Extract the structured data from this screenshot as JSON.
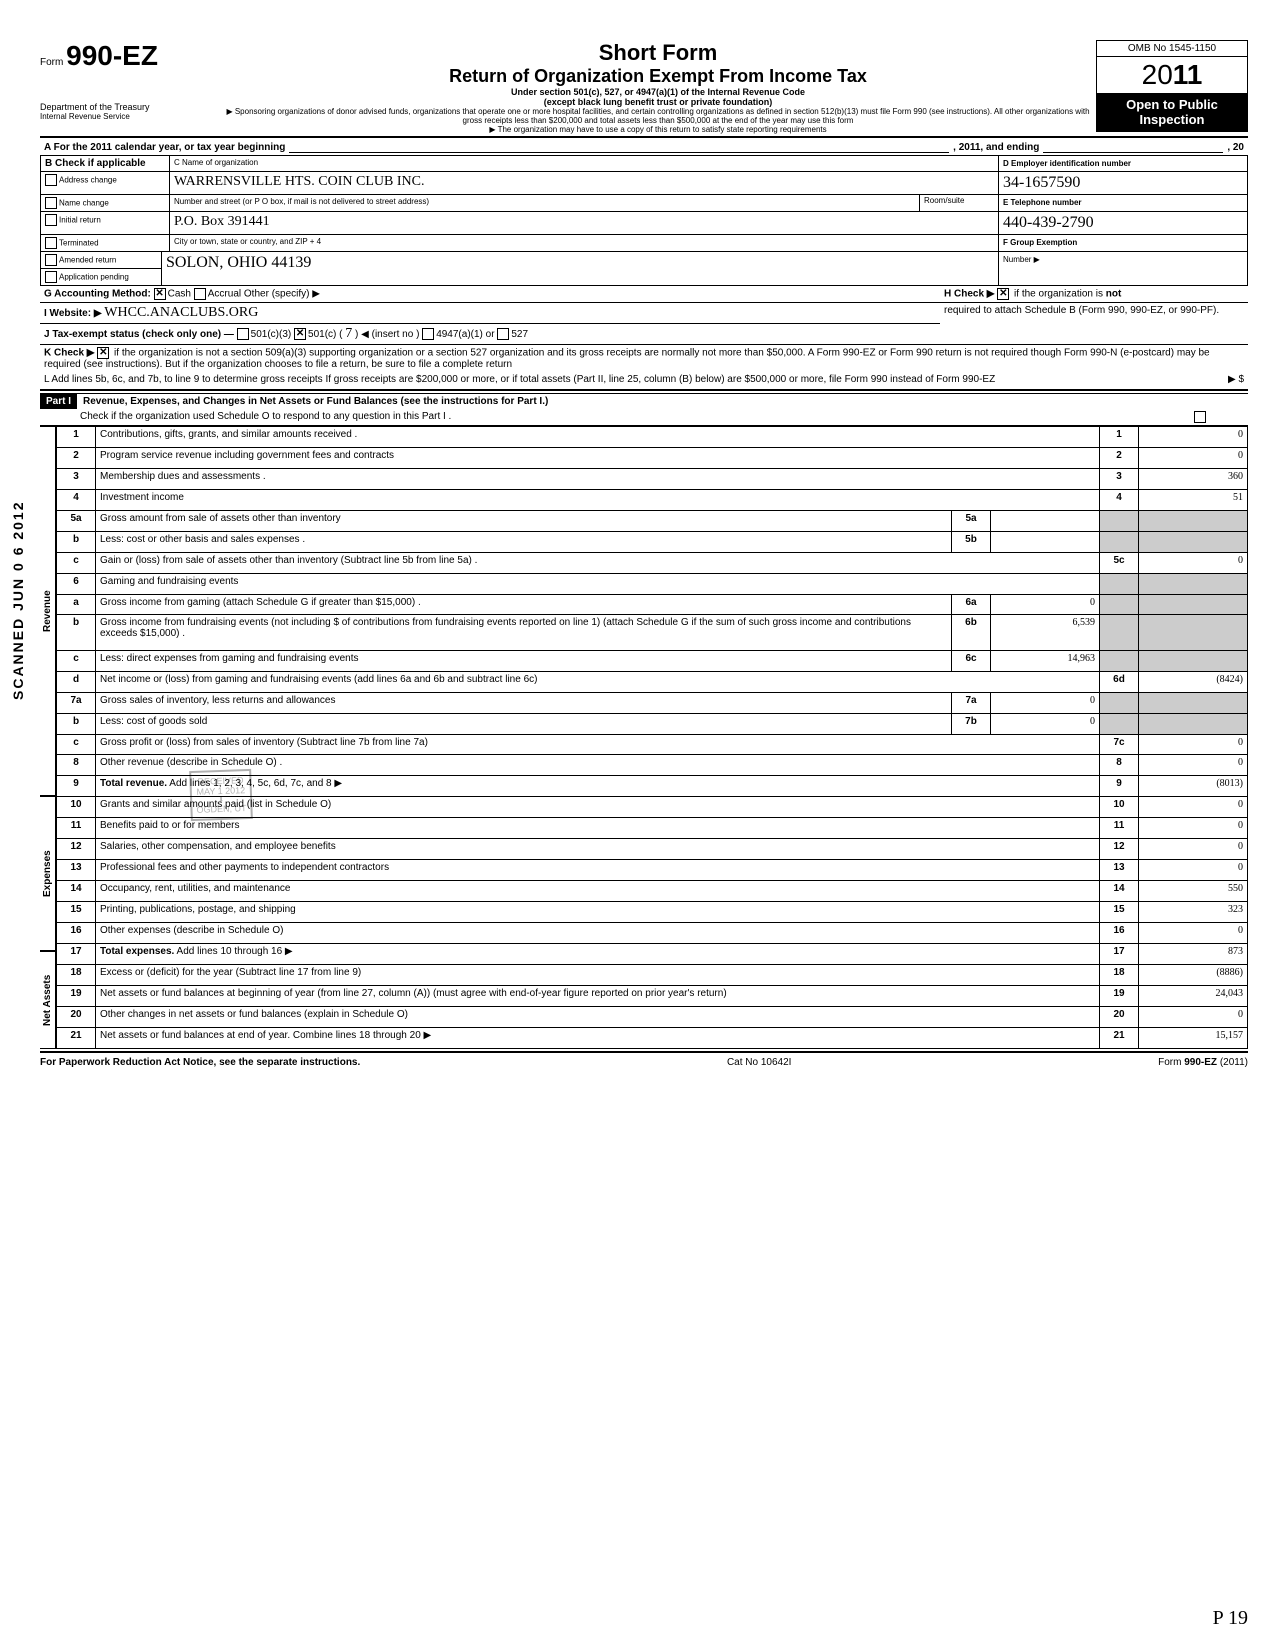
{
  "header": {
    "form_prefix": "Form",
    "form_number": "990-EZ",
    "dept1": "Department of the Treasury",
    "dept2": "Internal Revenue Service",
    "short_form": "Short Form",
    "title": "Return of Organization Exempt From Income Tax",
    "sub1": "Under section 501(c), 527, or 4947(a)(1) of the Internal Revenue Code",
    "sub2": "(except black lung benefit trust or private foundation)",
    "sub3": "▶ Sponsoring organizations of donor advised funds, organizations that operate one or more hospital facilities, and certain controlling organizations as defined in section 512(b)(13) must file Form 990 (see instructions). All other organizations with gross receipts less than $200,000 and total assets less than $500,000 at the end of the year may use this form",
    "sub4": "▶ The organization may have to use a copy of this return to satisfy state reporting requirements",
    "omb": "OMB No 1545-1150",
    "year": "2011",
    "open": "Open to Public Inspection"
  },
  "sectionA": {
    "a_text": "A  For the 2011 calendar year, or tax year beginning",
    "a_mid": ", 2011, and ending",
    "a_end": ", 20",
    "b_label": "B  Check if applicable",
    "b_items": [
      "Address change",
      "Name change",
      "Initial return",
      "Terminated",
      "Amended return",
      "Application pending"
    ],
    "c_label": "C Name of organization",
    "c_name": "WARRENSVILLE HTS. COIN CLUB INC.",
    "c_addr_label": "Number and street (or P O  box, if mail is not delivered to street address)",
    "c_room": "Room/suite",
    "c_addr": "P.O. Box 391441",
    "c_city_label": "City or town, state or country, and ZIP + 4",
    "c_city": "SOLON, OHIO   44139",
    "d_label": "D Employer identification number",
    "d_val": "34-1657590",
    "e_label": "E Telephone number",
    "e_val": "440-439-2790",
    "f_label": "F Group Exemption",
    "f_sub": "Number ▶",
    "g_label": "G  Accounting Method:",
    "g_cash": "Cash",
    "g_accrual": "Accrual",
    "g_other": "Other (specify) ▶",
    "h_label": "H Check ▶",
    "h_text": "if the organization is not required to attach Schedule B (Form 990, 990-EZ, or 990-PF).",
    "i_label": "I   Website: ▶",
    "i_val": "WHCC.ANACLUBS.ORG",
    "j_label": "J  Tax-exempt status (check only one) —",
    "j_501c3": "501(c)(3)",
    "j_501c": "501(c) (",
    "j_501c_num": "7",
    "j_insert": ") ◀ (insert no )",
    "j_4947": "4947(a)(1) or",
    "j_527": "527",
    "k_label": "K  Check ▶",
    "k_text": "if the organization is not a section 509(a)(3) supporting organization or a section 527 organization and its gross receipts are normally not more than $50,000. A Form 990-EZ or Form 990 return is not required though Form 990-N (e-postcard) may be required (see instructions). But if the organization chooses to file a return, be sure to file a complete return",
    "l_text": "L  Add lines 5b, 6c, and 7b, to line 9 to determine gross receipts  If gross receipts are $200,000 or more, or if total assets (Part II, line 25, column (B) below) are $500,000 or more, file Form 990 instead of Form 990-EZ",
    "l_arrow": "▶  $"
  },
  "part1": {
    "label": "Part I",
    "title": "Revenue, Expenses, and Changes in Net Assets or Fund Balances (see the instructions for Part I.)",
    "check": "Check if the organization used Schedule O to respond to any question in this Part I ."
  },
  "sidebars": {
    "revenue": "Revenue",
    "expenses": "Expenses",
    "netassets": "Net Assets",
    "scanned": "SCANNED  JUN 0 6 2012"
  },
  "lines": [
    {
      "n": "1",
      "desc": "Contributions, gifts, grants, and similar amounts received .",
      "box": "1",
      "val": "0"
    },
    {
      "n": "2",
      "desc": "Program service revenue including government fees and contracts",
      "box": "2",
      "val": "0"
    },
    {
      "n": "3",
      "desc": "Membership dues and assessments .",
      "box": "3",
      "val": "360"
    },
    {
      "n": "4",
      "desc": "Investment income",
      "box": "4",
      "val": "51"
    },
    {
      "n": "5a",
      "desc": "Gross amount from sale of assets other than inventory",
      "ibox": "5a",
      "ival": ""
    },
    {
      "n": "b",
      "desc": "Less: cost or other basis and sales expenses .",
      "ibox": "5b",
      "ival": ""
    },
    {
      "n": "c",
      "desc": "Gain or (loss) from sale of assets other than inventory (Subtract line 5b from line 5a) .",
      "box": "5c",
      "val": "0"
    },
    {
      "n": "6",
      "desc": "Gaming and fundraising events"
    },
    {
      "n": "a",
      "desc": "Gross income from gaming (attach Schedule G if greater than $15,000) .",
      "ibox": "6a",
      "ival": "0"
    },
    {
      "n": "b",
      "desc": "Gross income from fundraising events (not including  $                    of contributions from fundraising events reported on line 1) (attach Schedule G if the sum of such gross income and contributions exceeds $15,000) .",
      "ibox": "6b",
      "ival": "6,539"
    },
    {
      "n": "c",
      "desc": "Less: direct expenses from gaming and fundraising events",
      "ibox": "6c",
      "ival": "14,963"
    },
    {
      "n": "d",
      "desc": "Net income or (loss) from gaming and fundraising events (add lines 6a and 6b and subtract line 6c)",
      "box": "6d",
      "val": "(8424)"
    },
    {
      "n": "7a",
      "desc": "Gross sales of inventory, less returns and allowances",
      "ibox": "7a",
      "ival": "0"
    },
    {
      "n": "b",
      "desc": "Less: cost of goods sold",
      "ibox": "7b",
      "ival": "0"
    },
    {
      "n": "c",
      "desc": "Gross profit or (loss) from sales of inventory (Subtract line 7b from line 7a)",
      "box": "7c",
      "val": "0"
    },
    {
      "n": "8",
      "desc": "Other revenue (describe in Schedule O) .",
      "box": "8",
      "val": "0"
    },
    {
      "n": "9",
      "desc": "Total revenue. Add lines 1, 2, 3, 4, 5c, 6d, 7c, and 8     ▶",
      "box": "9",
      "val": "(8013)",
      "bold": true
    },
    {
      "n": "10",
      "desc": "Grants and similar amounts paid (list in Schedule O)",
      "box": "10",
      "val": "0"
    },
    {
      "n": "11",
      "desc": "Benefits paid to or for members",
      "box": "11",
      "val": "0"
    },
    {
      "n": "12",
      "desc": "Salaries, other compensation, and employee benefits",
      "box": "12",
      "val": "0"
    },
    {
      "n": "13",
      "desc": "Professional fees and other payments to independent contractors",
      "box": "13",
      "val": "0"
    },
    {
      "n": "14",
      "desc": "Occupancy, rent, utilities, and maintenance",
      "box": "14",
      "val": "550"
    },
    {
      "n": "15",
      "desc": "Printing, publications, postage, and shipping",
      "box": "15",
      "val": "323"
    },
    {
      "n": "16",
      "desc": "Other expenses (describe in Schedule O)",
      "box": "16",
      "val": "0"
    },
    {
      "n": "17",
      "desc": "Total expenses. Add lines 10 through 16     ▶",
      "box": "17",
      "val": "873",
      "bold": true
    },
    {
      "n": "18",
      "desc": "Excess or (deficit) for the year (Subtract line 17 from line 9)",
      "box": "18",
      "val": "(8886)"
    },
    {
      "n": "19",
      "desc": "Net assets or fund balances at beginning of year (from line 27, column (A)) (must agree with end-of-year figure reported on prior year's return)",
      "box": "19",
      "val": "24,043"
    },
    {
      "n": "20",
      "desc": "Other changes in net assets or fund balances (explain in Schedule O)",
      "box": "20",
      "val": "0"
    },
    {
      "n": "21",
      "desc": "Net assets or fund balances at end of year. Combine lines 18 through 20     ▶",
      "box": "21",
      "val": "15,157"
    }
  ],
  "footer": {
    "left": "For Paperwork Reduction Act Notice, see the separate instructions.",
    "mid": "Cat  No  10642I",
    "right": "Form 990-EZ  (2011)"
  },
  "stamp": {
    "l1": "RECEIVED",
    "l2": "MAY 1 2012",
    "l3": "OGDEN, UT"
  },
  "pagenum": "P 19"
}
